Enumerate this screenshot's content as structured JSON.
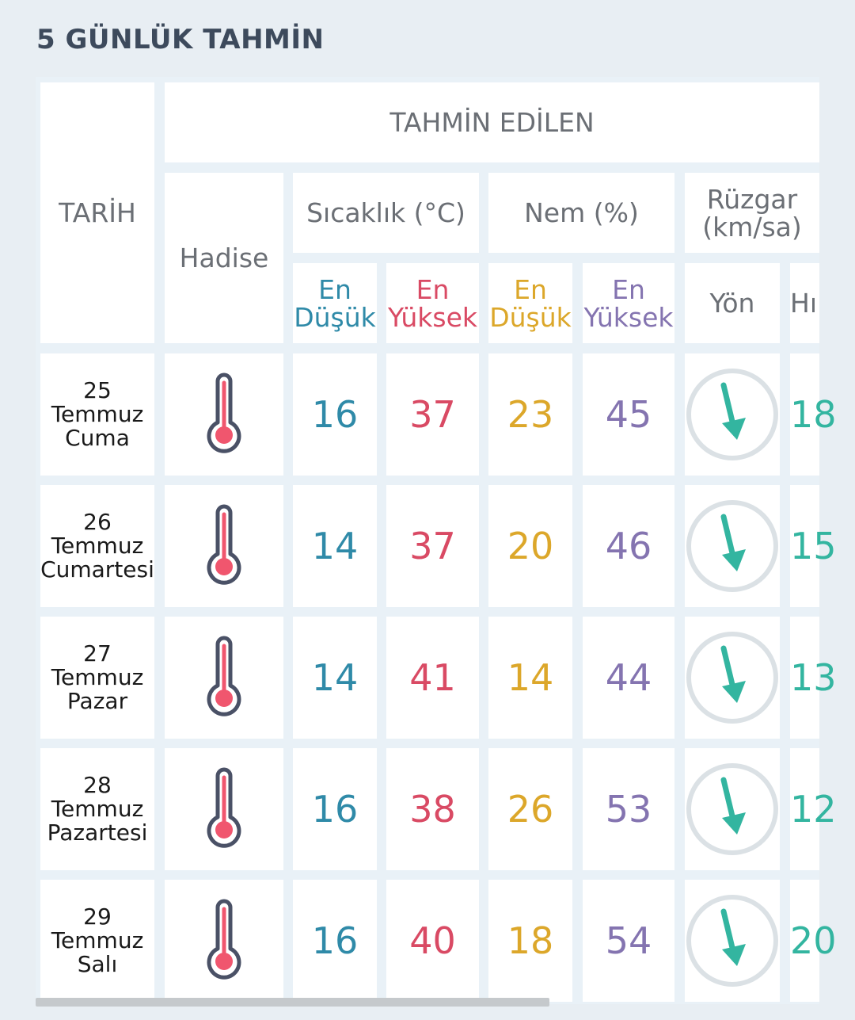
{
  "page_title": "5 GÜNLÜK TAHMİN",
  "header": {
    "date_label": "TARİH",
    "forecast_label": "TAHMİN EDİLEN",
    "event_label": "Hadise",
    "temp_label": "Sıcaklık (°C)",
    "humidity_label": "Nem (%)",
    "wind_label_line1": "Rüzgar",
    "wind_label_line2": "(km/sa)",
    "en": "En",
    "low": "Düşük",
    "high": "Yüksek",
    "direction": "Yön",
    "speed": "Hı"
  },
  "colors": {
    "low_temp": "#2f8aa8",
    "high_temp": "#d94a64",
    "low_humidity": "#dca72a",
    "high_humidity": "#8474b0",
    "wind": "#33b5a0"
  },
  "rows": [
    {
      "day": "25",
      "month": "Temmuz",
      "weekday": "Cuma",
      "icon": "thermometer-icon",
      "temp_low": "16",
      "temp_high": "37",
      "hum_low": "23",
      "hum_high": "45",
      "wind_dir": "arrow-down-icon",
      "wind_speed": "18"
    },
    {
      "day": "26",
      "month": "Temmuz",
      "weekday": "Cumartesi",
      "icon": "thermometer-icon",
      "temp_low": "14",
      "temp_high": "37",
      "hum_low": "20",
      "hum_high": "46",
      "wind_dir": "arrow-down-icon",
      "wind_speed": "15"
    },
    {
      "day": "27",
      "month": "Temmuz",
      "weekday": "Pazar",
      "icon": "thermometer-icon",
      "temp_low": "14",
      "temp_high": "41",
      "hum_low": "14",
      "hum_high": "44",
      "wind_dir": "arrow-down-icon",
      "wind_speed": "13"
    },
    {
      "day": "28",
      "month": "Temmuz",
      "weekday": "Pazartesi",
      "icon": "thermometer-icon",
      "temp_low": "16",
      "temp_high": "38",
      "hum_low": "26",
      "hum_high": "53",
      "wind_dir": "arrow-down-icon",
      "wind_speed": "12"
    },
    {
      "day": "29",
      "month": "Temmuz",
      "weekday": "Salı",
      "icon": "thermometer-icon",
      "temp_low": "16",
      "temp_high": "40",
      "hum_low": "18",
      "hum_high": "54",
      "wind_dir": "arrow-down-icon",
      "wind_speed": "20"
    }
  ]
}
